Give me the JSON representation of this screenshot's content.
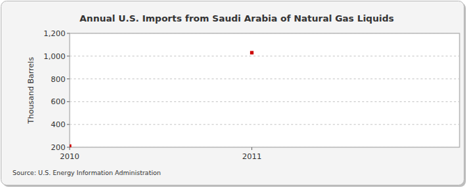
{
  "chart_data": {
    "type": "scatter",
    "title": "Annual U.S. Imports from Saudi Arabia of Natural Gas Liquids",
    "y_label": "Thousand Barrels",
    "source": "Source: U.S. Energy Information Administration",
    "x": [
      2010,
      2011
    ],
    "values": [
      210,
      1030
    ],
    "color": "#cc0000",
    "marker": "square",
    "xlim": [
      2010,
      2012.14
    ],
    "xticks": [
      2010,
      2011
    ],
    "ylim": [
      200,
      1200
    ],
    "yticks": [
      200,
      400,
      600,
      800,
      {
        "value": 1000,
        "label": "1,000"
      },
      {
        "value": 1200,
        "label": "1,200"
      }
    ],
    "grid": true
  }
}
